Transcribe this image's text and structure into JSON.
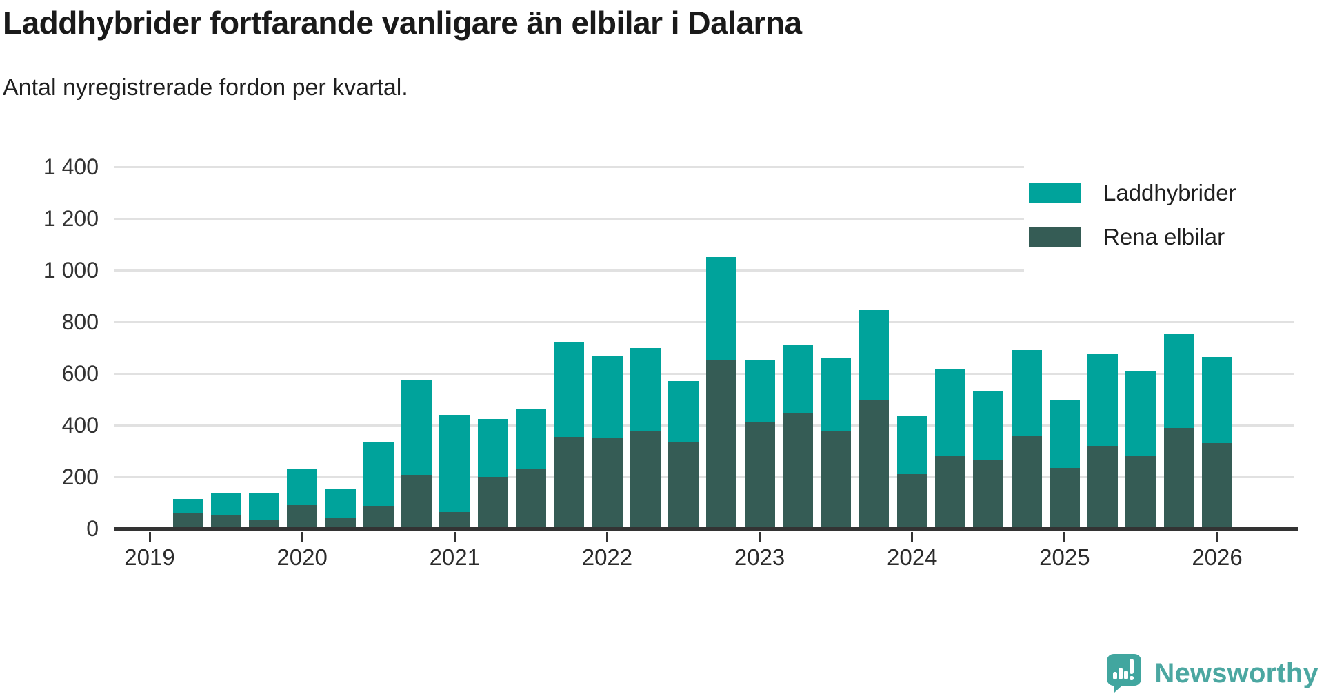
{
  "header": {
    "title": "Laddhybrider fortfarande vanligare än elbilar i Dalarna",
    "subtitle": "Antal nyregistrerade fordon per kvartal."
  },
  "legend": {
    "items": [
      {
        "label": "Laddhybrider",
        "color": "#00a39b"
      },
      {
        "label": "Rena elbilar",
        "color": "#355c55"
      }
    ]
  },
  "footer": {
    "brand": "Newsworthy",
    "brand_color": "#4ba7a1",
    "logo_color": "#41a69f"
  },
  "colors": {
    "laddhybrider": "#00a39b",
    "rena_elbilar": "#355c55",
    "gridline": "#e1e1e1",
    "axis": "#333333"
  },
  "chart_data": {
    "type": "bar",
    "stacked": true,
    "title": "Laddhybrider fortfarande vanligare än elbilar i Dalarna",
    "subtitle": "Antal nyregistrerade fordon per kvartal.",
    "x": [
      "2019 Q2",
      "2019 Q3",
      "2019 Q4",
      "2020 Q1",
      "2020 Q2",
      "2020 Q3",
      "2020 Q4",
      "2021 Q1",
      "2021 Q2",
      "2021 Q3",
      "2021 Q4",
      "2022 Q1",
      "2022 Q2",
      "2022 Q3",
      "2022 Q4",
      "2023 Q1",
      "2023 Q2",
      "2023 Q3",
      "2023 Q4",
      "2024 Q1",
      "2024 Q2",
      "2024 Q3",
      "2024 Q4",
      "2025 Q1",
      "2025 Q2",
      "2025 Q3",
      "2025 Q4",
      "2026 Q1"
    ],
    "series": [
      {
        "name": "Rena elbilar",
        "color": "#355c55",
        "values": [
          60,
          50,
          35,
          90,
          40,
          85,
          205,
          65,
          200,
          230,
          355,
          350,
          375,
          335,
          650,
          410,
          445,
          380,
          495,
          210,
          280,
          265,
          360,
          235,
          320,
          280,
          390,
          330
        ]
      },
      {
        "name": "Laddhybrider",
        "color": "#00a39b",
        "values": [
          55,
          85,
          105,
          140,
          115,
          250,
          370,
          375,
          225,
          235,
          365,
          320,
          325,
          235,
          400,
          240,
          265,
          280,
          350,
          225,
          335,
          265,
          330,
          265,
          355,
          330,
          365,
          335
        ]
      }
    ],
    "ylim": [
      0,
      1400
    ],
    "yticks": [
      0,
      200,
      400,
      600,
      800,
      1000,
      1200,
      1400
    ],
    "ytick_labels": [
      "0",
      "200",
      "400",
      "600",
      "800",
      "1 000",
      "1 200",
      "1 400"
    ],
    "xtick_labels": [
      "2019",
      "2020",
      "2021",
      "2022",
      "2023",
      "2024",
      "2025",
      "2026"
    ],
    "grid": "horizontal",
    "legend_position": "top-right",
    "xlabel": "",
    "ylabel": ""
  }
}
